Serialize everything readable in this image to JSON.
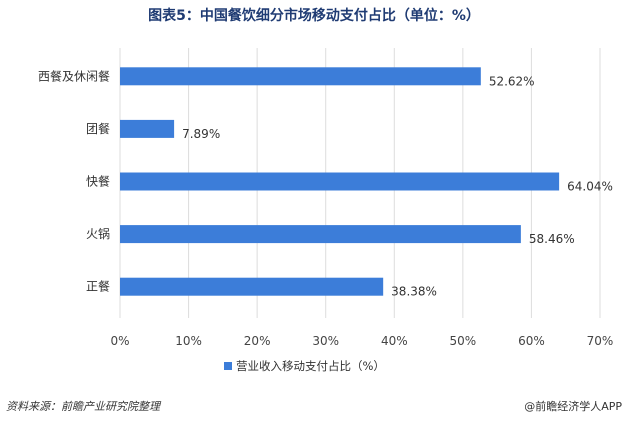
{
  "chart_data": {
    "type": "bar",
    "orientation": "horizontal",
    "title": "图表5：中国餐饮细分市场移动支付占比（单位：%）",
    "categories": [
      "西餐及休闲餐",
      "团餐",
      "快餐",
      "火锅",
      "正餐"
    ],
    "series": [
      {
        "name": "营业收入移动支付占比（%）",
        "values": [
          52.62,
          7.89,
          64.04,
          58.46,
          38.38
        ],
        "labels": [
          "52.62%",
          "7.89%",
          "64.04%",
          "58.46%",
          "38.38%"
        ],
        "color": "#3c7dd9"
      }
    ],
    "xlim": [
      0,
      70
    ],
    "xticks": [
      "0%",
      "10%",
      "20%",
      "30%",
      "40%",
      "50%",
      "60%",
      "70%"
    ],
    "grid": true,
    "legend_position": "bottom"
  },
  "footer": {
    "source": "资料来源：前瞻产业研究院整理",
    "brand": "@前瞻经济学人APP"
  }
}
